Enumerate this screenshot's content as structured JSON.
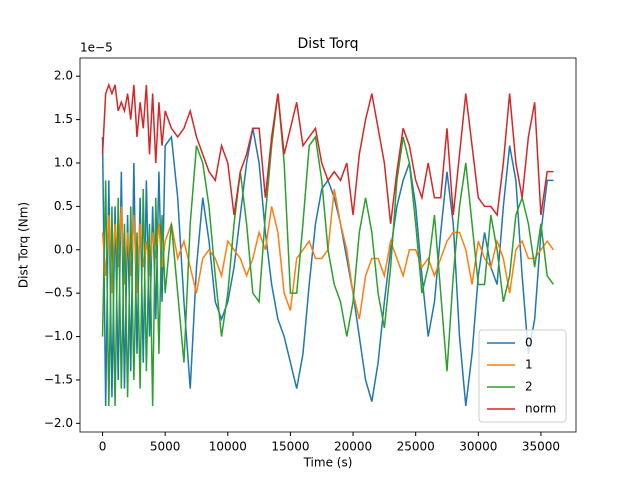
{
  "chart_data": {
    "type": "line",
    "title": "Dist Torq",
    "xlabel": "Time (s)",
    "ylabel": "Dist Torq (Nm)",
    "y_offset_label": "1e−5",
    "x": [
      0,
      250,
      500,
      750,
      1000,
      1250,
      1500,
      1750,
      2000,
      2250,
      2500,
      2750,
      3000,
      3250,
      3500,
      3750,
      4000,
      4250,
      4500,
      4750,
      5000,
      5500,
      6000,
      6500,
      7000,
      7500,
      8000,
      8500,
      9000,
      9500,
      10000,
      10500,
      11000,
      11500,
      12000,
      12500,
      13000,
      13500,
      14000,
      14500,
      15000,
      15500,
      16000,
      16500,
      17000,
      17500,
      18000,
      18500,
      19000,
      19500,
      20000,
      20500,
      21000,
      21500,
      22000,
      22500,
      23000,
      23500,
      24000,
      24500,
      25000,
      25500,
      26000,
      26500,
      27000,
      27500,
      28000,
      28500,
      29000,
      29500,
      30000,
      30500,
      31000,
      31500,
      32000,
      32500,
      33000,
      33500,
      34000,
      34500,
      35000,
      35500,
      36000
    ],
    "series": [
      {
        "name": "0",
        "color": "#1f77b4",
        "values": [
          1.3,
          -1.8,
          0.8,
          -1.7,
          0.5,
          -1.5,
          0.9,
          -1.6,
          0.4,
          -1.4,
          1.0,
          -1.2,
          0.6,
          -1.3,
          0.8,
          -1.0,
          0.5,
          -0.8,
          0.9,
          -0.6,
          1.2,
          1.3,
          0.6,
          -0.6,
          -1.6,
          -0.2,
          0.6,
          0.1,
          -0.6,
          -0.8,
          -0.6,
          -0.2,
          0.4,
          1.0,
          1.4,
          1.0,
          0.2,
          -0.4,
          -0.8,
          -1.0,
          -1.3,
          -1.6,
          -1.2,
          -0.4,
          0.3,
          0.7,
          0.8,
          0.6,
          0.3,
          -0.1,
          -0.5,
          -1.0,
          -1.5,
          -1.75,
          -1.3,
          -0.6,
          0.0,
          0.5,
          0.8,
          1.0,
          0.5,
          -0.3,
          -1.0,
          -0.6,
          0.2,
          0.9,
          0.3,
          -1.0,
          -1.8,
          -1.2,
          -0.3,
          0.2,
          -0.2,
          -0.4,
          0.5,
          1.2,
          0.8,
          -0.3,
          -1.2,
          -0.8,
          0.2,
          0.8,
          0.8
        ]
      },
      {
        "name": "1",
        "color": "#ff7f0e",
        "values": [
          0.2,
          -0.3,
          0.4,
          -0.5,
          0.3,
          -0.2,
          0.5,
          -0.4,
          0.2,
          -0.3,
          0.4,
          -0.5,
          0.3,
          -0.2,
          0.1,
          -0.3,
          0.2,
          -0.1,
          0.3,
          -0.2,
          0.1,
          0.3,
          -0.1,
          0.1,
          -0.2,
          -0.5,
          -0.1,
          0.0,
          -0.1,
          -0.3,
          0.1,
          0.0,
          -0.1,
          -0.3,
          -0.1,
          0.2,
          0.0,
          0.5,
          0.2,
          -0.5,
          -0.7,
          -0.1,
          0.0,
          0.1,
          -0.1,
          -0.1,
          0.0,
          0.7,
          0.3,
          0.0,
          -0.5,
          -0.8,
          -0.3,
          -0.1,
          -0.1,
          -0.3,
          0.1,
          -0.1,
          -0.3,
          0.0,
          0.0,
          -0.2,
          -0.1,
          -0.3,
          -0.1,
          0.1,
          0.2,
          0.2,
          0.0,
          -0.4,
          0.1,
          -0.1,
          -0.2,
          0.1,
          -0.1,
          -0.5,
          0.0,
          0.1,
          -0.1,
          -0.1,
          0.0,
          0.1,
          0.0
        ]
      },
      {
        "name": "2",
        "color": "#2ca02c",
        "values": [
          -1.0,
          0.8,
          -1.8,
          0.5,
          -1.8,
          0.6,
          -1.6,
          0.3,
          -1.7,
          0.5,
          -1.5,
          0.2,
          -1.6,
          0.7,
          -1.4,
          0.3,
          -1.8,
          0.6,
          -1.2,
          0.4,
          -0.5,
          0.3,
          -0.5,
          -1.3,
          0.3,
          1.2,
          1.0,
          0.5,
          -0.3,
          -1.0,
          -0.5,
          0.3,
          0.9,
          0.3,
          -0.5,
          -0.6,
          0.4,
          1.2,
          1.8,
          1.0,
          -0.5,
          -0.5,
          0.3,
          1.2,
          1.3,
          0.8,
          0.0,
          -0.4,
          -0.6,
          -1.0,
          -0.6,
          0.2,
          0.6,
          0.2,
          -0.5,
          -0.9,
          -0.2,
          0.8,
          1.3,
          1.0,
          0.3,
          -0.5,
          -0.2,
          0.4,
          -0.5,
          -1.4,
          -0.3,
          0.5,
          1.0,
          0.3,
          -0.4,
          -0.4,
          0.4,
          0.0,
          -0.6,
          -0.3,
          0.4,
          0.6,
          0.3,
          -0.2,
          0.3,
          -0.3,
          -0.4
        ]
      },
      {
        "name": "norm",
        "color": "#d62728",
        "values": [
          1.1,
          1.8,
          1.9,
          1.8,
          1.9,
          1.6,
          1.7,
          1.6,
          1.8,
          1.5,
          1.9,
          1.3,
          1.7,
          1.4,
          1.9,
          1.1,
          1.8,
          1.0,
          1.7,
          1.2,
          1.6,
          1.4,
          1.3,
          1.4,
          1.6,
          1.3,
          1.1,
          0.9,
          0.8,
          1.2,
          1.0,
          0.4,
          0.9,
          1.1,
          1.4,
          1.4,
          0.6,
          1.3,
          1.8,
          1.1,
          1.4,
          1.7,
          1.2,
          1.3,
          1.4,
          1.0,
          0.8,
          0.9,
          0.8,
          1.0,
          0.4,
          1.1,
          1.5,
          1.8,
          1.4,
          1.0,
          0.3,
          0.9,
          1.4,
          1.2,
          0.8,
          0.6,
          1.0,
          0.6,
          0.6,
          1.4,
          0.4,
          1.1,
          1.8,
          1.2,
          0.6,
          0.5,
          0.5,
          0.4,
          1.0,
          1.8,
          1.0,
          0.6,
          1.3,
          1.7,
          0.4,
          0.9,
          0.9
        ]
      }
    ],
    "xlim": [
      -1800,
      37800
    ],
    "xticks": [
      0,
      5000,
      10000,
      15000,
      20000,
      25000,
      30000,
      35000
    ],
    "ylim": [
      -2.1,
      2.21
    ],
    "yticks": [
      {
        "value": -2.0,
        "label": "−2.0"
      },
      {
        "value": -1.5,
        "label": "−1.5"
      },
      {
        "value": -1.0,
        "label": "−1.0"
      },
      {
        "value": -0.5,
        "label": "−0.5"
      },
      {
        "value": 0.0,
        "label": "0.0"
      },
      {
        "value": 0.5,
        "label": "0.5"
      },
      {
        "value": 1.0,
        "label": "1.0"
      },
      {
        "value": 1.5,
        "label": "1.5"
      },
      {
        "value": 2.0,
        "label": "2.0"
      }
    ],
    "legend": "lower right"
  }
}
